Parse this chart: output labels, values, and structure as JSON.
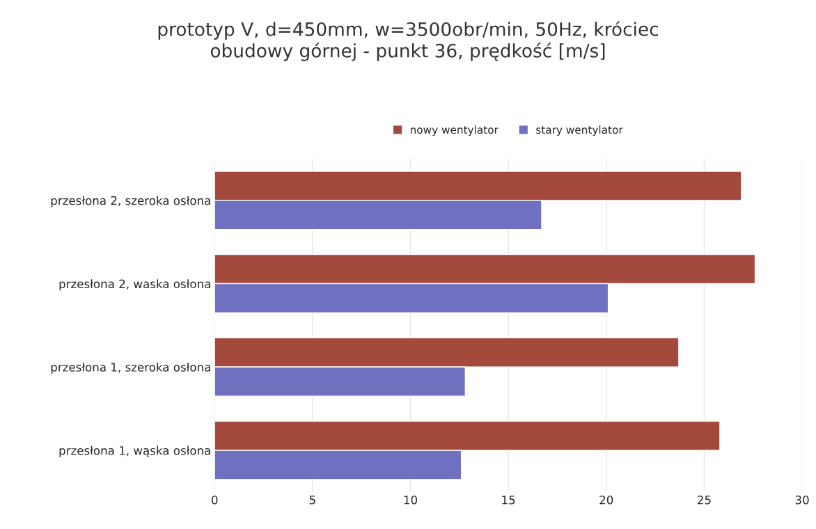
{
  "chart_data": {
    "type": "bar",
    "orientation": "horizontal",
    "title": "prototyp V, d=450mm, w=3500obr/min, 50Hz, króciec\nobudowy górnej - punkt 36, prędkość [m/s]",
    "categories": [
      "przesłona 2, szeroka osłona",
      "przesłona 2, waska osłona",
      "przesłona 1, szeroka osłona",
      "przesłona 1, wąska osłona"
    ],
    "series": [
      {
        "name": "nowy wentylator",
        "color": "#a34a3c",
        "values": [
          26.9,
          27.6,
          23.7,
          25.8
        ]
      },
      {
        "name": "stary wentylator",
        "color": "#6f70c0",
        "values": [
          16.7,
          20.1,
          12.8,
          12.6
        ]
      }
    ],
    "xlim": [
      0,
      30
    ],
    "xticks": [
      0,
      5,
      10,
      15,
      20,
      25,
      30
    ],
    "grid": "x",
    "legend": "top"
  }
}
